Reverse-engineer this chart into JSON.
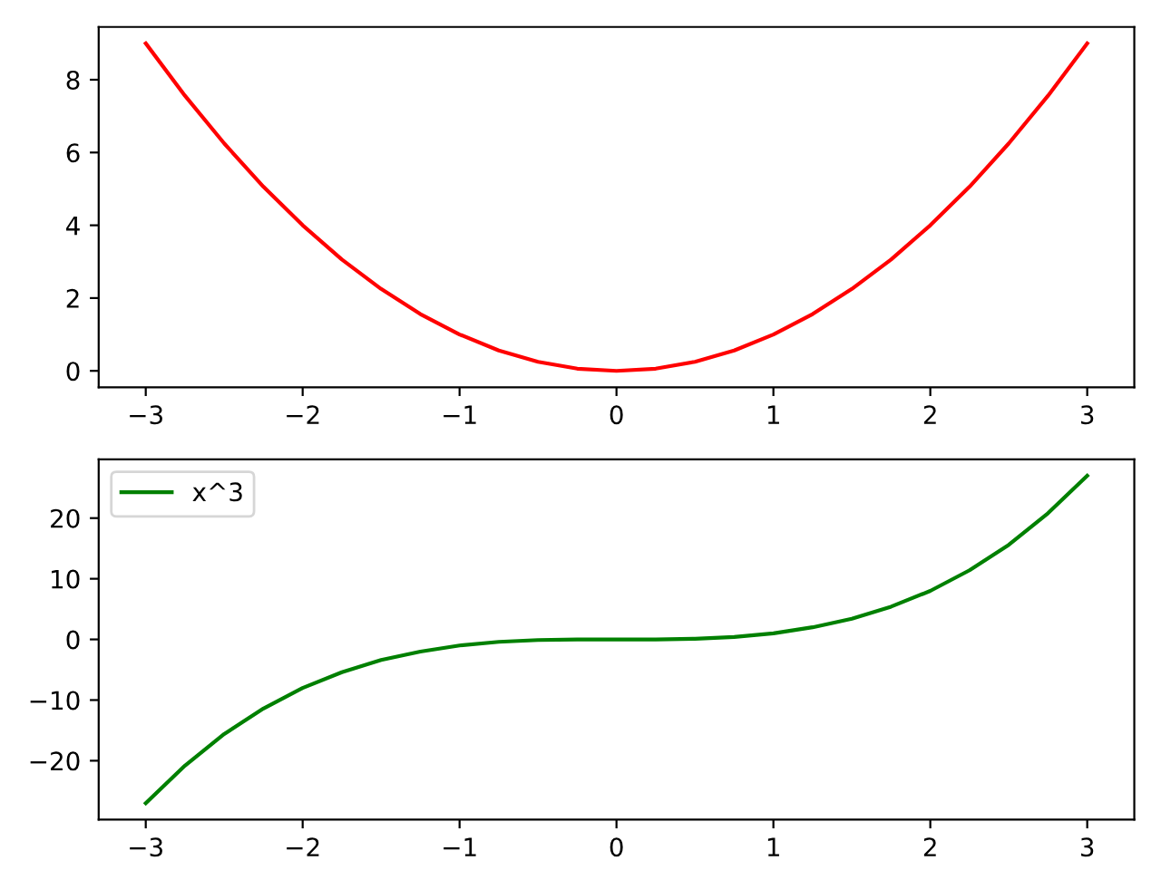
{
  "chart_data": [
    {
      "type": "line",
      "x": [
        -3,
        -2.75,
        -2.5,
        -2.25,
        -2,
        -1.75,
        -1.5,
        -1.25,
        -1,
        -0.75,
        -0.5,
        -0.25,
        0,
        0.25,
        0.5,
        0.75,
        1,
        1.25,
        1.5,
        1.75,
        2,
        2.25,
        2.5,
        2.75,
        3
      ],
      "series": [
        {
          "color": "#ff0000",
          "values": [
            9,
            7.56,
            6.25,
            5.06,
            4,
            3.06,
            2.25,
            1.56,
            1,
            0.56,
            0.25,
            0.06,
            0,
            0.06,
            0.25,
            0.56,
            1,
            1.56,
            2.25,
            3.06,
            4,
            5.06,
            6.25,
            7.56,
            9
          ]
        }
      ],
      "xlim": [
        -3.3,
        3.3
      ],
      "ylim": [
        -0.45,
        9.45
      ],
      "xticks": [
        {
          "value": -3,
          "label": "−3"
        },
        {
          "value": -2,
          "label": "−2"
        },
        {
          "value": -1,
          "label": "−1"
        },
        0,
        1,
        2,
        3
      ],
      "yticks": [
        0,
        2,
        4,
        6,
        8
      ],
      "grid": false,
      "legend": false
    },
    {
      "type": "line",
      "x": [
        -3,
        -2.75,
        -2.5,
        -2.25,
        -2,
        -1.75,
        -1.5,
        -1.25,
        -1,
        -0.75,
        -0.5,
        -0.25,
        0,
        0.25,
        0.5,
        0.75,
        1,
        1.25,
        1.5,
        1.75,
        2,
        2.25,
        2.5,
        2.75,
        3
      ],
      "series": [
        {
          "name": "x^3",
          "color": "#008000",
          "values": [
            -27,
            -20.8,
            -15.6,
            -11.4,
            -8,
            -5.4,
            -3.4,
            -2,
            -1,
            -0.4,
            -0.1,
            0,
            0,
            0,
            0.1,
            0.4,
            1,
            2,
            3.4,
            5.4,
            8,
            11.4,
            15.6,
            20.8,
            27
          ]
        }
      ],
      "xlim": [
        -3.3,
        3.3
      ],
      "ylim": [
        -29.7,
        29.7
      ],
      "xticks": [
        {
          "value": -3,
          "label": "−3"
        },
        {
          "value": -2,
          "label": "−2"
        },
        {
          "value": -1,
          "label": "−1"
        },
        0,
        1,
        2,
        3
      ],
      "yticks": [
        {
          "value": -20,
          "label": "−20"
        },
        {
          "value": -10,
          "label": "−10"
        },
        0,
        10,
        20
      ],
      "grid": false,
      "legend": "upper left"
    }
  ]
}
